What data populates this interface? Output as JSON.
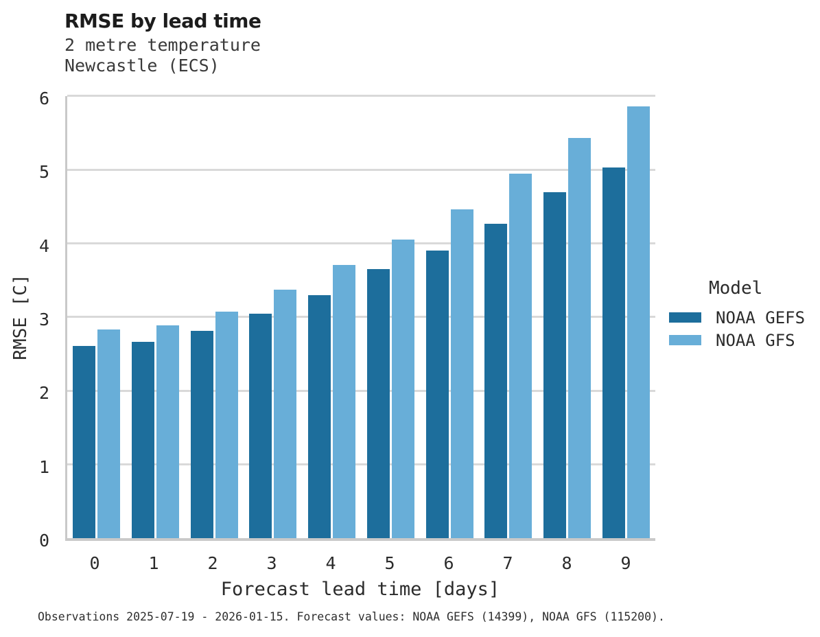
{
  "header": {
    "title": "RMSE by lead time",
    "subtitle_line1": "2 metre temperature",
    "subtitle_line2": "Newcastle (ECS)"
  },
  "chart_data": {
    "type": "bar",
    "title": "RMSE by lead time",
    "subtitle": [
      "2 metre temperature",
      "Newcastle (ECS)"
    ],
    "xlabel": "Forecast lead time [days]",
    "ylabel": "RMSE [C]",
    "categories": [
      "0",
      "1",
      "2",
      "3",
      "4",
      "5",
      "6",
      "7",
      "8",
      "9"
    ],
    "series": [
      {
        "name": "NOAA GEFS",
        "color": "#1d6e9c",
        "values": [
          2.61,
          2.66,
          2.81,
          3.05,
          3.3,
          3.65,
          3.9,
          4.27,
          4.7,
          5.03
        ]
      },
      {
        "name": "NOAA GFS",
        "color": "#68aed8",
        "values": [
          2.83,
          2.89,
          3.07,
          3.37,
          3.71,
          4.05,
          4.46,
          4.95,
          5.43,
          5.86
        ]
      }
    ],
    "ylim": [
      0,
      6
    ],
    "yticks": [
      0,
      1,
      2,
      3,
      4,
      5,
      6
    ],
    "grid": "horizontal-only",
    "legend_position": "right"
  },
  "legend": {
    "title": "Model",
    "entries": [
      {
        "label": "NOAA GEFS",
        "color": "#1d6e9c"
      },
      {
        "label": "NOAA GFS",
        "color": "#68aed8"
      }
    ]
  },
  "footer": {
    "caption": "Observations 2025-07-19 - 2026-01-15. Forecast values: NOAA GEFS (14399), NOAA GFS (115200)."
  },
  "colors": {
    "series_dark": "#1d6e9c",
    "series_light": "#68aed8",
    "gridline": "#d9d9d9",
    "axis_spine": "#c9c9c9",
    "title_text": "#1c1c1c",
    "body_text": "#2b2b2b",
    "background": "#ffffff"
  }
}
